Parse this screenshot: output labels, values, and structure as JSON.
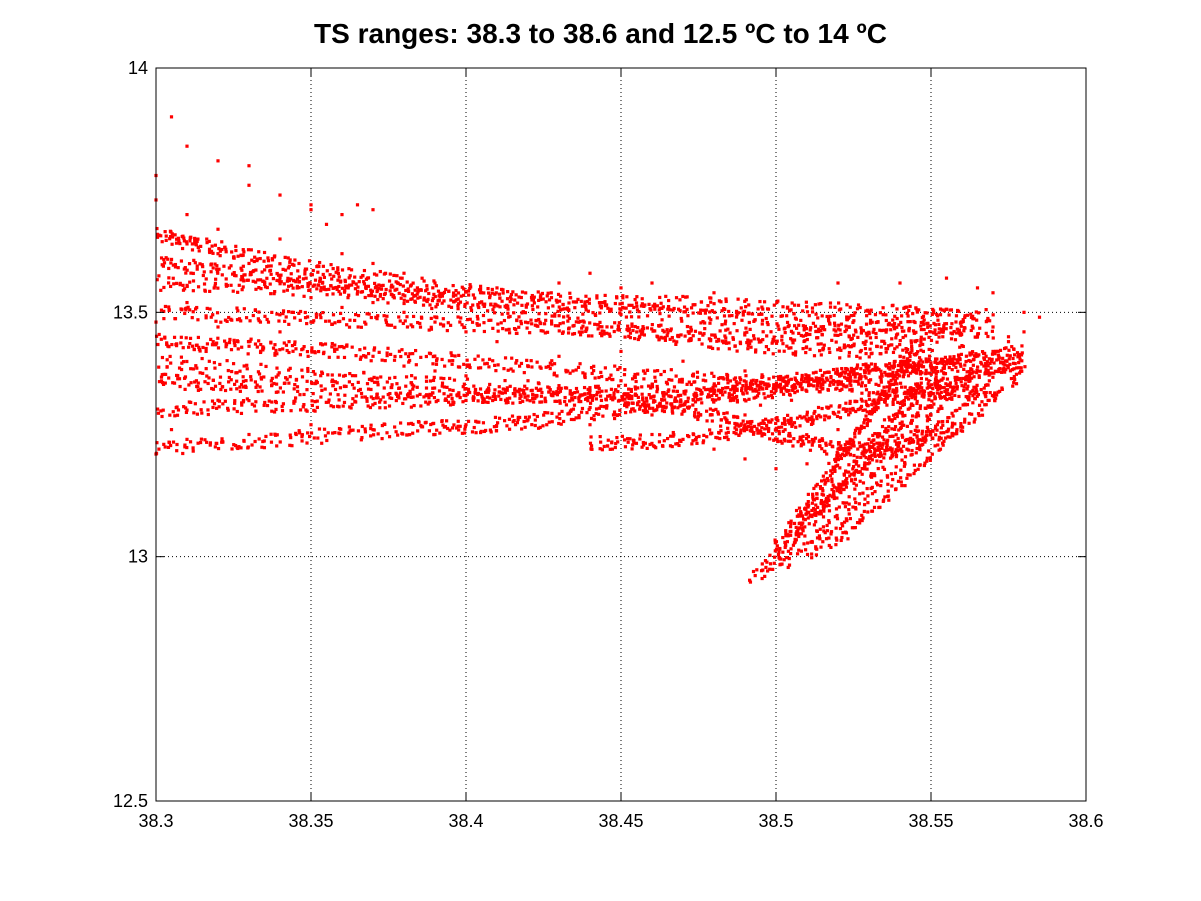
{
  "chart_data": {
    "type": "scatter",
    "title": "TS ranges: 38.3 to 38.6 and 12.5 ºC to 14 ºC",
    "xlabel": "",
    "ylabel": "",
    "xlim": [
      38.3,
      38.6
    ],
    "ylim": [
      12.5,
      14
    ],
    "xticks": [
      38.3,
      38.35,
      38.4,
      38.45,
      38.5,
      38.55,
      38.6
    ],
    "xtick_labels": [
      "38.3",
      "38.35",
      "38.4",
      "38.45",
      "38.5",
      "38.55",
      "38.6"
    ],
    "yticks": [
      12.5,
      13,
      13.5,
      14
    ],
    "ytick_labels": [
      "12.5",
      "13",
      "13.5",
      "14"
    ],
    "grid": true,
    "marker_color": "#ff0000",
    "series": [
      {
        "name": "",
        "tracks": [
          [
            [
              38.3,
              13.44
            ],
            [
              38.33,
              13.43
            ],
            [
              38.36,
              13.42
            ],
            [
              38.4,
              13.4
            ],
            [
              38.44,
              13.38
            ],
            [
              38.48,
              13.36
            ],
            [
              38.52,
              13.35
            ],
            [
              38.55,
              13.34
            ],
            [
              38.57,
              13.33
            ]
          ],
          [
            [
              38.3,
              13.66
            ],
            [
              38.32,
              13.63
            ],
            [
              38.35,
              13.59
            ],
            [
              38.38,
              13.56
            ],
            [
              38.42,
              13.53
            ],
            [
              38.46,
              13.52
            ],
            [
              38.5,
              13.51
            ],
            [
              38.54,
              13.5
            ],
            [
              38.57,
              13.49
            ]
          ],
          [
            [
              38.3,
              13.22
            ],
            [
              38.34,
              13.24
            ],
            [
              38.38,
              13.26
            ],
            [
              38.41,
              13.27
            ],
            [
              38.44,
              13.29
            ],
            [
              38.47,
              13.32
            ],
            [
              38.5,
              13.35
            ],
            [
              38.53,
              13.38
            ],
            [
              38.56,
              13.4
            ],
            [
              38.58,
              13.42
            ]
          ],
          [
            [
              38.3,
              13.5
            ],
            [
              38.34,
              13.49
            ],
            [
              38.38,
              13.48
            ],
            [
              38.42,
              13.47
            ],
            [
              38.46,
              13.46
            ],
            [
              38.5,
              13.45
            ],
            [
              38.54,
              13.45
            ],
            [
              38.57,
              13.46
            ]
          ],
          [
            [
              38.3,
              13.4
            ],
            [
              38.35,
              13.37
            ],
            [
              38.4,
              13.35
            ],
            [
              38.45,
              13.33
            ],
            [
              38.48,
              13.29
            ],
            [
              38.5,
              13.25
            ],
            [
              38.52,
              13.22
            ],
            [
              38.54,
              13.22
            ],
            [
              38.56,
              13.27
            ]
          ],
          [
            [
              38.3,
              13.3
            ],
            [
              38.34,
              13.31
            ],
            [
              38.38,
              13.32
            ],
            [
              38.42,
              13.33
            ],
            [
              38.46,
              13.34
            ],
            [
              38.5,
              13.36
            ],
            [
              38.54,
              13.38
            ],
            [
              38.56,
              13.4
            ]
          ],
          [
            [
              38.3,
              13.56
            ],
            [
              38.34,
              13.55
            ],
            [
              38.38,
              13.54
            ],
            [
              38.42,
              13.52
            ],
            [
              38.46,
              13.5
            ],
            [
              38.5,
              13.48
            ],
            [
              38.53,
              13.47
            ],
            [
              38.56,
              13.47
            ]
          ],
          [
            [
              38.44,
              13.23
            ],
            [
              38.47,
              13.24
            ],
            [
              38.5,
              13.27
            ],
            [
              38.52,
              13.3
            ],
            [
              38.54,
              13.33
            ],
            [
              38.56,
              13.37
            ],
            [
              38.58,
              13.4
            ]
          ],
          [
            [
              38.3,
              13.6
            ],
            [
              38.33,
              13.58
            ],
            [
              38.36,
              13.55
            ],
            [
              38.4,
              13.51
            ],
            [
              38.44,
              13.47
            ],
            [
              38.48,
              13.44
            ],
            [
              38.52,
              13.42
            ],
            [
              38.55,
              13.42
            ]
          ],
          [
            [
              38.3,
              13.36
            ],
            [
              38.33,
              13.35
            ],
            [
              38.37,
              13.34
            ],
            [
              38.41,
              13.33
            ],
            [
              38.45,
              13.32
            ],
            [
              38.49,
              13.33
            ],
            [
              38.52,
              13.36
            ],
            [
              38.55,
              13.4
            ]
          ]
        ],
        "fan": [
          {
            "from": [
              38.492,
              12.95
            ],
            "to": [
              38.545,
              13.42
            ]
          },
          {
            "from": [
              38.497,
              12.96
            ],
            "to": [
              38.56,
              13.43
            ]
          },
          {
            "from": [
              38.503,
              12.98
            ],
            "to": [
              38.57,
              13.42
            ]
          },
          {
            "from": [
              38.51,
              13.0
            ],
            "to": [
              38.575,
              13.4
            ]
          },
          {
            "from": [
              38.518,
              13.02
            ],
            "to": [
              38.58,
              13.38
            ]
          },
          {
            "from": [
              38.505,
              13.04
            ],
            "to": [
              38.548,
              13.36
            ]
          },
          {
            "from": [
              38.512,
              13.08
            ],
            "to": [
              38.555,
              13.35
            ]
          },
          {
            "from": [
              38.5,
              13.0
            ],
            "to": [
              38.54,
              13.38
            ]
          }
        ],
        "scatter_points": [
          [
            38.3,
            13.73
          ],
          [
            38.3,
            13.78
          ],
          [
            38.305,
            13.9
          ],
          [
            38.31,
            13.84
          ],
          [
            38.32,
            13.81
          ],
          [
            38.33,
            13.8
          ],
          [
            38.33,
            13.76
          ],
          [
            38.34,
            13.74
          ],
          [
            38.35,
            13.72
          ],
          [
            38.35,
            13.71
          ],
          [
            38.36,
            13.7
          ],
          [
            38.37,
            13.71
          ],
          [
            38.365,
            13.72
          ],
          [
            38.355,
            13.68
          ],
          [
            38.31,
            13.7
          ],
          [
            38.32,
            13.67
          ],
          [
            38.34,
            13.65
          ],
          [
            38.36,
            13.62
          ],
          [
            38.37,
            13.6
          ],
          [
            38.38,
            13.58
          ],
          [
            38.39,
            13.56
          ],
          [
            38.41,
            13.55
          ],
          [
            38.43,
            13.56
          ],
          [
            38.44,
            13.58
          ],
          [
            38.45,
            13.55
          ],
          [
            38.46,
            13.56
          ],
          [
            38.48,
            13.54
          ],
          [
            38.52,
            13.56
          ],
          [
            38.54,
            13.56
          ],
          [
            38.555,
            13.57
          ],
          [
            38.565,
            13.55
          ],
          [
            38.57,
            13.54
          ],
          [
            38.58,
            13.5
          ],
          [
            38.585,
            13.49
          ],
          [
            38.58,
            13.46
          ],
          [
            38.575,
            13.44
          ],
          [
            38.57,
            13.42
          ],
          [
            38.565,
            13.38
          ],
          [
            38.56,
            13.35
          ],
          [
            38.55,
            13.29
          ],
          [
            38.53,
            13.24
          ],
          [
            38.52,
            13.22
          ],
          [
            38.51,
            13.19
          ],
          [
            38.5,
            13.18
          ],
          [
            38.49,
            13.2
          ],
          [
            38.48,
            13.22
          ],
          [
            38.47,
            13.24
          ],
          [
            38.46,
            13.25
          ],
          [
            38.44,
            13.27
          ],
          [
            38.42,
            13.28
          ],
          [
            38.4,
            13.27
          ],
          [
            38.39,
            13.25
          ],
          [
            38.37,
            13.26
          ],
          [
            38.35,
            13.27
          ],
          [
            38.33,
            13.25
          ],
          [
            38.31,
            13.24
          ],
          [
            38.3,
            13.21
          ],
          [
            38.305,
            13.26
          ],
          [
            38.31,
            13.3
          ],
          [
            38.32,
            13.32
          ],
          [
            38.3,
            13.48
          ],
          [
            38.31,
            13.52
          ],
          [
            38.32,
            13.47
          ],
          [
            38.33,
            13.44
          ],
          [
            38.34,
            13.46
          ],
          [
            38.35,
            13.48
          ],
          [
            38.36,
            13.43
          ],
          [
            38.37,
            13.41
          ],
          [
            38.38,
            13.39
          ],
          [
            38.39,
            13.38
          ],
          [
            38.4,
            13.37
          ],
          [
            38.42,
            13.39
          ],
          [
            38.43,
            13.41
          ],
          [
            38.45,
            13.42
          ],
          [
            38.47,
            13.4
          ],
          [
            38.49,
            13.38
          ],
          [
            38.51,
            13.37
          ],
          [
            38.53,
            13.39
          ],
          [
            38.54,
            13.41
          ],
          [
            38.545,
            13.44
          ],
          [
            38.55,
            13.46
          ],
          [
            38.56,
            13.48
          ],
          [
            38.57,
            13.47
          ],
          [
            38.575,
            13.45
          ],
          [
            38.525,
            13.3
          ],
          [
            38.53,
            13.33
          ],
          [
            38.535,
            13.28
          ],
          [
            38.52,
            13.26
          ],
          [
            38.51,
            13.29
          ],
          [
            38.505,
            13.32
          ],
          [
            38.5,
            13.34
          ],
          [
            38.495,
            13.31
          ],
          [
            38.49,
            13.29
          ],
          [
            38.485,
            13.33
          ],
          [
            38.48,
            13.35
          ],
          [
            38.47,
            13.31
          ],
          [
            38.46,
            13.29
          ],
          [
            38.455,
            13.33
          ],
          [
            38.45,
            13.36
          ],
          [
            38.44,
            13.34
          ],
          [
            38.435,
            13.31
          ],
          [
            38.43,
            13.35
          ],
          [
            38.42,
            13.36
          ],
          [
            38.41,
            13.44
          ],
          [
            38.4,
            13.46
          ],
          [
            38.39,
            13.48
          ],
          [
            38.38,
            13.5
          ],
          [
            38.37,
            13.52
          ],
          [
            38.36,
            13.51
          ],
          [
            38.35,
            13.53
          ],
          [
            38.34,
            13.57
          ],
          [
            38.33,
            13.6
          ],
          [
            38.32,
            13.62
          ],
          [
            38.31,
            13.64
          ]
        ]
      }
    ]
  }
}
